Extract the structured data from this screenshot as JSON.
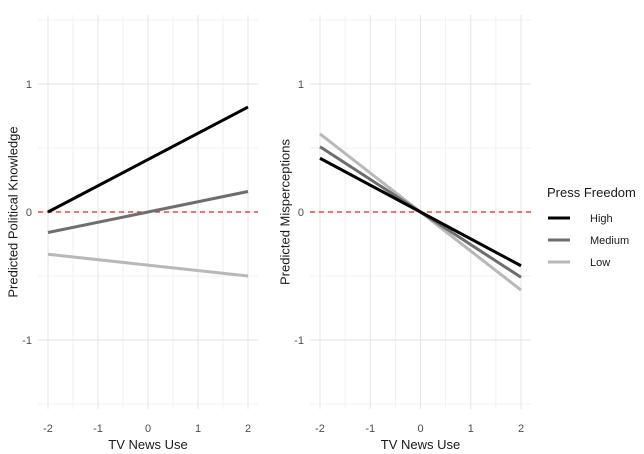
{
  "chart_data": [
    {
      "type": "line",
      "title": "",
      "xlabel": "TV News Use",
      "ylabel": "Predicted Political Knowledge",
      "xlim": [
        -2,
        2
      ],
      "ylim": [
        -1.5,
        1.5
      ],
      "xticks": [
        "-2",
        "-1",
        "0",
        "1",
        "2"
      ],
      "yticks": [
        "-1",
        "0",
        "1"
      ],
      "reference_line": {
        "y": 0,
        "color": "#d62728",
        "style": "dashed"
      },
      "series": [
        {
          "name": "High",
          "x": [
            -2,
            2
          ],
          "values": [
            0.0,
            0.82
          ]
        },
        {
          "name": "Medium",
          "x": [
            -2,
            2
          ],
          "values": [
            -0.16,
            0.16
          ]
        },
        {
          "name": "Low",
          "x": [
            -2,
            2
          ],
          "values": [
            -0.33,
            -0.5
          ]
        }
      ]
    },
    {
      "type": "line",
      "title": "",
      "xlabel": "TV News Use",
      "ylabel": "Predicted Misperceptions",
      "xlim": [
        -2,
        2
      ],
      "ylim": [
        -1.5,
        1.5
      ],
      "xticks": [
        "-2",
        "-1",
        "0",
        "1",
        "2"
      ],
      "yticks": [
        "-1",
        "0",
        "1"
      ],
      "reference_line": {
        "y": 0,
        "color": "#d62728",
        "style": "dashed"
      },
      "series": [
        {
          "name": "High",
          "x": [
            -2,
            2
          ],
          "values": [
            0.42,
            -0.42
          ]
        },
        {
          "name": "Medium",
          "x": [
            -2,
            2
          ],
          "values": [
            0.51,
            -0.51
          ]
        },
        {
          "name": "Low",
          "x": [
            -2,
            2
          ],
          "values": [
            0.61,
            -0.61
          ]
        }
      ]
    }
  ],
  "legend": {
    "title": "Press Freedom",
    "items": [
      {
        "label": "High",
        "color": "#000000"
      },
      {
        "label": "Medium",
        "color": "#6e6e6e"
      },
      {
        "label": "Low",
        "color": "#b8b8b8"
      }
    ]
  }
}
